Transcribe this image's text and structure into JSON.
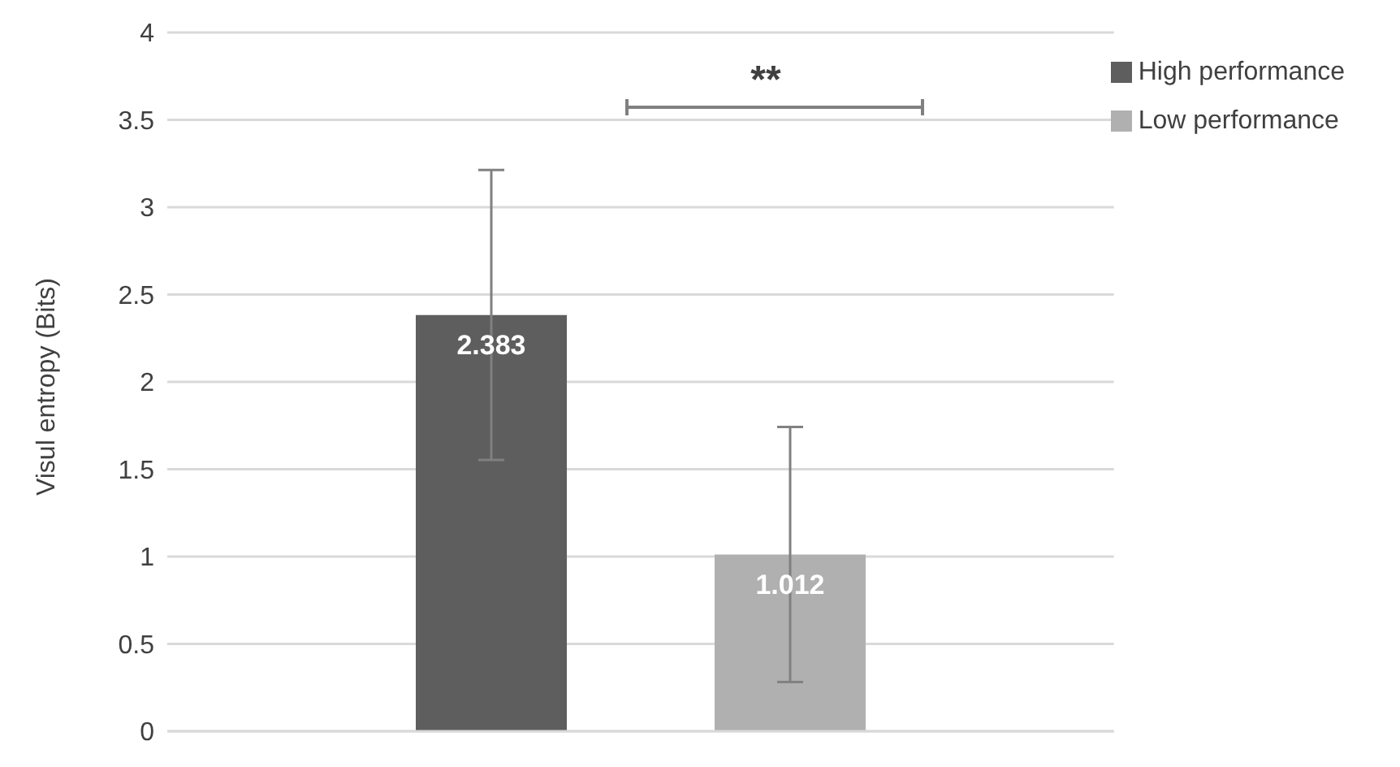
{
  "chart_data": {
    "type": "bar",
    "ylabel": "Visul entropy (Bits)",
    "categories": [
      null
    ],
    "series": [
      {
        "name": "High performance",
        "color": "#5e5e5e",
        "values": [
          2.383
        ],
        "errors": [
          0.83
        ]
      },
      {
        "name": "Low performance",
        "color": "#b0b0b0",
        "values": [
          1.012
        ],
        "errors": [
          0.73
        ]
      }
    ],
    "annotations": [
      "**"
    ],
    "data_labels": true,
    "ylim": [
      0,
      4
    ],
    "yticks": [
      0,
      0.5,
      1,
      1.5,
      2,
      2.5,
      3,
      3.5,
      4
    ],
    "grid": "y",
    "legend": "top right"
  }
}
